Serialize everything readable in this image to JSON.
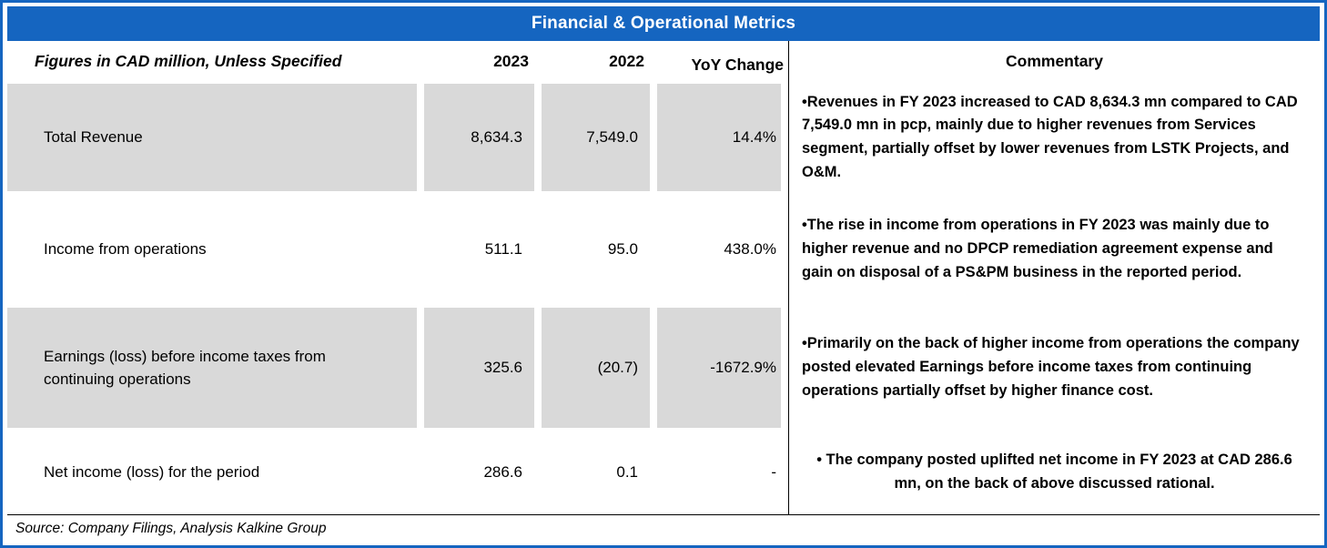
{
  "title": "Financial & Operational Metrics",
  "columns": {
    "metric": "Figures in CAD million, Unless Specified",
    "y2023": "2023",
    "y2022": "2022",
    "yoy": "YoY Change",
    "commentary": "Commentary"
  },
  "rows": [
    {
      "metric": "Total Revenue",
      "y2023": "8,634.3",
      "y2022": "7,549.0",
      "yoy": "14.4%",
      "commentary": "•Revenues in FY 2023 increased to CAD 8,634.3 mn compared to CAD 7,549.0 mn in pcp, mainly due to higher revenues from Services segment, partially offset by lower revenues from LSTK Projects, and O&M."
    },
    {
      "metric": "Income from operations",
      "y2023": "511.1",
      "y2022": "95.0",
      "yoy": "438.0%",
      "commentary": "•The rise in income from operations in FY 2023 was mainly due to higher revenue and no DPCP remediation agreement expense and gain on disposal of a PS&PM business  in the reported period."
    },
    {
      "metric": "Earnings (loss) before income taxes from continuing operations",
      "y2023": "325.6",
      "y2022": "(20.7)",
      "yoy": "-1672.9%",
      "commentary": "•Primarily on the back of higher income from operations the company posted elevated Earnings before income taxes from continuing operations partially offset by higher finance cost."
    },
    {
      "metric": "Net income (loss) for the period",
      "y2023": "286.6",
      "y2022": "0.1",
      "yoy": "-",
      "commentary": "• The company posted uplifted net income in FY 2023 at CAD 286.6 mn, on the back of above discussed rational."
    }
  ],
  "source": "Source: Company Filings, Analysis Kalkine Group",
  "colors": {
    "accent_blue": "#1565C0",
    "row_shade": "#D9D9D9"
  }
}
